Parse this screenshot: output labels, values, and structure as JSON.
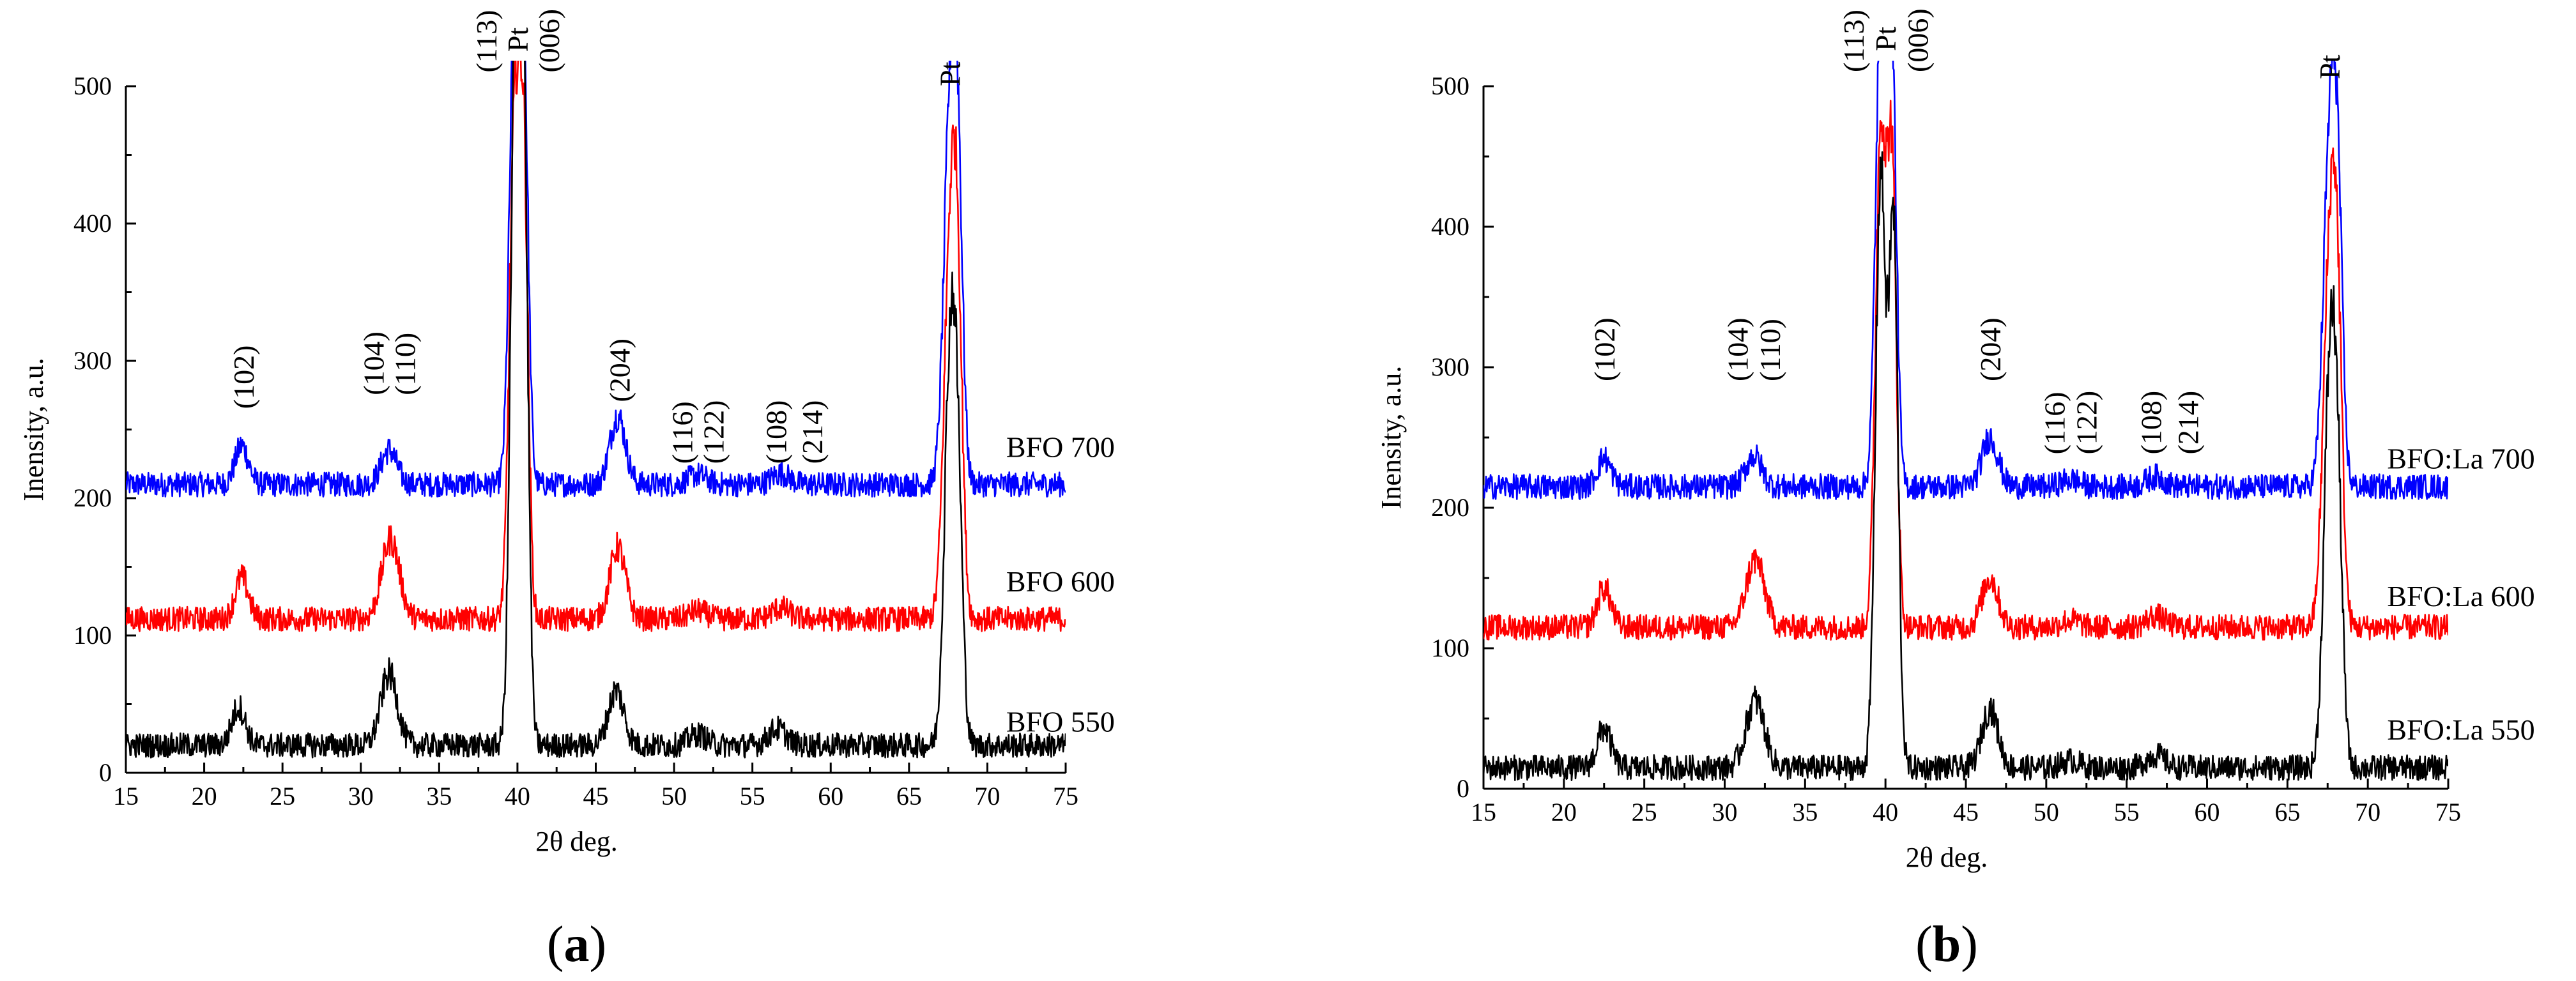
{
  "chart_data": [
    {
      "type": "line",
      "panel_label": "a",
      "xlabel": "2θ deg.",
      "ylabel": "Inensity, a.u.",
      "xlim": [
        15,
        75
      ],
      "ylim": [
        0,
        500
      ],
      "xticks": [
        15,
        20,
        25,
        30,
        35,
        40,
        45,
        50,
        55,
        60,
        65,
        70,
        75
      ],
      "yticks": [
        0,
        100,
        200,
        300,
        400,
        500
      ],
      "series": [
        {
          "name": "BFO 700",
          "color": "#0000ff",
          "baseline": 210,
          "label_x": 71.2,
          "label_y": 230,
          "peaks": [
            [
              22.4,
              28,
              0.6
            ],
            [
              31.8,
              25,
              0.7
            ],
            [
              39.8,
              330,
              0.45
            ],
            [
              40.4,
              300,
              0.4
            ],
            [
              46.4,
              50,
              0.7
            ],
            [
              51.5,
              7,
              0.8
            ],
            [
              56.8,
              8,
              0.8
            ],
            [
              67.6,
              250,
              0.55
            ],
            [
              68.1,
              200,
              0.45
            ]
          ]
        },
        {
          "name": "BFO 600",
          "color": "#ff0000",
          "baseline": 112,
          "label_x": 71.2,
          "label_y": 132,
          "peaks": [
            [
              22.4,
              30,
              0.6
            ],
            [
              31.9,
              58,
              0.8
            ],
            [
              39.8,
              350,
              0.45
            ],
            [
              40.4,
              320,
              0.4
            ],
            [
              46.4,
              52,
              0.7
            ],
            [
              51.5,
              6,
              0.8
            ],
            [
              56.8,
              8,
              0.8
            ],
            [
              67.6,
              250,
              0.55
            ],
            [
              68.1,
              200,
              0.45
            ]
          ]
        },
        {
          "name": "BFO 550",
          "color": "#000000",
          "baseline": 20,
          "label_x": 71.2,
          "label_y": 30,
          "peaks": [
            [
              22.2,
              28,
              0.6
            ],
            [
              31.8,
              52,
              0.75
            ],
            [
              39.9,
              540,
              0.45
            ],
            [
              40.4,
              400,
              0.4
            ],
            [
              46.3,
              40,
              0.7
            ],
            [
              51.5,
              8,
              0.8
            ],
            [
              56.6,
              12,
              0.8
            ],
            [
              67.6,
              260,
              0.5
            ],
            [
              68.1,
              170,
              0.45
            ]
          ]
        }
      ],
      "annotations": [
        {
          "text": "(102)",
          "x": 22.5,
          "y": 265
        },
        {
          "text": "(104)",
          "x": 30.8,
          "y": 275
        },
        {
          "text": "(110)",
          "x": 32.8,
          "y": 275
        },
        {
          "text": "(113)",
          "x": 38.0,
          "y": 510
        },
        {
          "text": "Pt",
          "x": 40.0,
          "y": 525
        },
        {
          "text": "(006)",
          "x": 42.0,
          "y": 510
        },
        {
          "text": "(204)",
          "x": 46.5,
          "y": 270
        },
        {
          "text": "(116)",
          "x": 50.5,
          "y": 225
        },
        {
          "text": "(122)",
          "x": 52.5,
          "y": 225
        },
        {
          "text": "(108)",
          "x": 56.5,
          "y": 225
        },
        {
          "text": "(214)",
          "x": 58.8,
          "y": 225
        },
        {
          "text": "Pt",
          "x": 67.6,
          "y": 500
        }
      ]
    },
    {
      "type": "line",
      "panel_label": "b",
      "xlabel": "2θ deg.",
      "ylabel": "Inensity, a.u.",
      "xlim": [
        15,
        75
      ],
      "ylim": [
        0,
        500
      ],
      "xticks": [
        15,
        20,
        25,
        30,
        35,
        40,
        45,
        50,
        55,
        60,
        65,
        70,
        75
      ],
      "yticks": [
        0,
        100,
        200,
        300,
        400,
        500
      ],
      "series": [
        {
          "name": "BFO:La 700",
          "color": "#0000ff",
          "baseline": 215,
          "label_x": 71.2,
          "label_y": 228,
          "peaks": [
            [
              22.5,
              20,
              0.6
            ],
            [
              31.8,
              22,
              0.7
            ],
            [
              39.7,
              330,
              0.45
            ],
            [
              40.4,
              300,
              0.4
            ],
            [
              46.5,
              35,
              0.7
            ],
            [
              51.5,
              5,
              0.8
            ],
            [
              56.8,
              7,
              0.8
            ],
            [
              67.6,
              220,
              0.55
            ],
            [
              68.1,
              180,
              0.45
            ]
          ]
        },
        {
          "name": "BFO:La 600",
          "color": "#ff0000",
          "baseline": 115,
          "label_x": 71.2,
          "label_y": 130,
          "peaks": [
            [
              22.5,
              28,
              0.6
            ],
            [
              31.9,
              48,
              0.8
            ],
            [
              39.7,
              350,
              0.45
            ],
            [
              40.4,
              320,
              0.4
            ],
            [
              46.5,
              35,
              0.7
            ],
            [
              51.5,
              5,
              0.8
            ],
            [
              56.8,
              8,
              0.8
            ],
            [
              67.6,
              240,
              0.55
            ],
            [
              68.1,
              190,
              0.45
            ]
          ]
        },
        {
          "name": "BFO:La 550",
          "color": "#000000",
          "baseline": 15,
          "label_x": 71.2,
          "label_y": 35,
          "peaks": [
            [
              22.5,
              28,
              0.6
            ],
            [
              31.9,
              48,
              0.8
            ],
            [
              39.7,
              420,
              0.45
            ],
            [
              40.5,
              380,
              0.4
            ],
            [
              46.5,
              42,
              0.7
            ],
            [
              51.5,
              5,
              0.8
            ],
            [
              56.8,
              9,
              0.8
            ],
            [
              67.6,
              250,
              0.5
            ],
            [
              68.1,
              180,
              0.45
            ]
          ]
        }
      ],
      "annotations": [
        {
          "text": "(102)",
          "x": 22.5,
          "y": 290
        },
        {
          "text": "(104)",
          "x": 30.8,
          "y": 290
        },
        {
          "text": "(110)",
          "x": 32.8,
          "y": 290
        },
        {
          "text": "(113)",
          "x": 38.0,
          "y": 510
        },
        {
          "text": "Pt",
          "x": 40.0,
          "y": 525
        },
        {
          "text": "(006)",
          "x": 42.0,
          "y": 510
        },
        {
          "text": "(204)",
          "x": 46.5,
          "y": 290
        },
        {
          "text": "(116)",
          "x": 50.5,
          "y": 238
        },
        {
          "text": "(122)",
          "x": 52.5,
          "y": 238
        },
        {
          "text": "(108)",
          "x": 56.5,
          "y": 238
        },
        {
          "text": "(214)",
          "x": 58.8,
          "y": 238
        },
        {
          "text": "Pt",
          "x": 67.6,
          "y": 505
        }
      ]
    }
  ]
}
